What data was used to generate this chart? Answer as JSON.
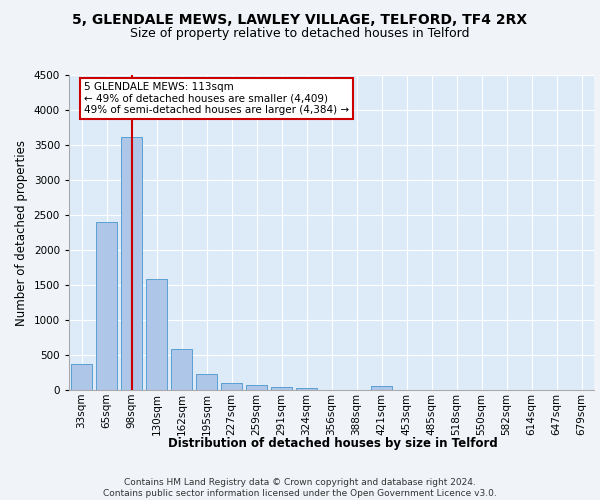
{
  "title": "5, GLENDALE MEWS, LAWLEY VILLAGE, TELFORD, TF4 2RX",
  "subtitle": "Size of property relative to detached houses in Telford",
  "xlabel": "Distribution of detached houses by size in Telford",
  "ylabel": "Number of detached properties",
  "categories": [
    "33sqm",
    "65sqm",
    "98sqm",
    "130sqm",
    "162sqm",
    "195sqm",
    "227sqm",
    "259sqm",
    "291sqm",
    "324sqm",
    "356sqm",
    "388sqm",
    "421sqm",
    "453sqm",
    "485sqm",
    "518sqm",
    "550sqm",
    "582sqm",
    "614sqm",
    "647sqm",
    "679sqm"
  ],
  "values": [
    370,
    2400,
    3620,
    1580,
    590,
    225,
    105,
    70,
    45,
    30,
    0,
    0,
    55,
    0,
    0,
    0,
    0,
    0,
    0,
    0,
    0
  ],
  "bar_color": "#aec6e8",
  "bar_edge_color": "#5a9fd4",
  "highlight_index": 2,
  "highlight_color": "#cc0000",
  "ylim": [
    0,
    4500
  ],
  "yticks": [
    0,
    500,
    1000,
    1500,
    2000,
    2500,
    3000,
    3500,
    4000,
    4500
  ],
  "annotation_text": "5 GLENDALE MEWS: 113sqm\n← 49% of detached houses are smaller (4,409)\n49% of semi-detached houses are larger (4,384) →",
  "annotation_box_color": "#ffffff",
  "annotation_box_edge": "#cc0000",
  "footer_text": "Contains HM Land Registry data © Crown copyright and database right 2024.\nContains public sector information licensed under the Open Government Licence v3.0.",
  "bg_color": "#ddeaf8",
  "grid_color": "#ffffff",
  "fig_bg_color": "#f0f4f8",
  "title_fontsize": 10,
  "subtitle_fontsize": 9,
  "axis_label_fontsize": 8.5,
  "tick_fontsize": 7.5,
  "footer_fontsize": 6.5,
  "annotation_fontsize": 7.5
}
